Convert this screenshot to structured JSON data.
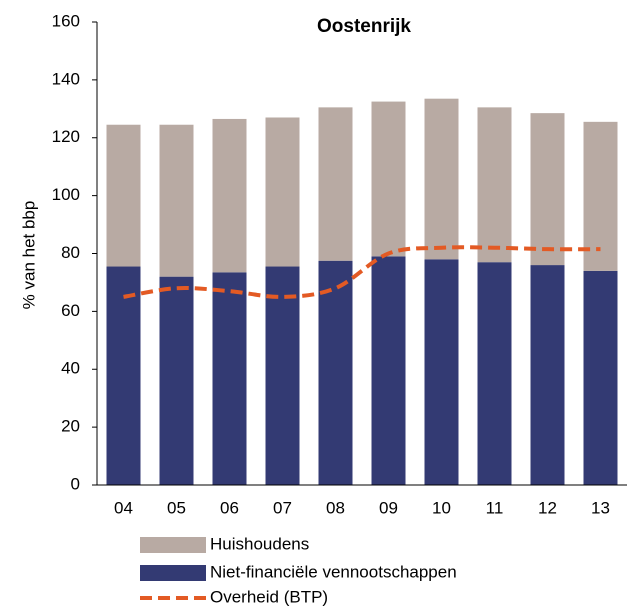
{
  "chart_data": {
    "type": "stacked-bar-line",
    "title": "Oostenrijk",
    "ylabel": "% van het bbp",
    "categories": [
      "04",
      "05",
      "06",
      "07",
      "08",
      "09",
      "10",
      "11",
      "12",
      "13"
    ],
    "series": [
      {
        "name": "Huishoudens",
        "color": "#b8aaa3",
        "kind": "bar",
        "values": [
          49,
          52.5,
          53,
          51.5,
          53,
          53.5,
          55.5,
          53.5,
          52.5,
          51.5
        ]
      },
      {
        "name": "Niet-financiële vennootschappen",
        "color": "#333a73",
        "kind": "bar",
        "values": [
          75.5,
          72,
          73.5,
          75.5,
          77.5,
          79,
          78,
          77,
          76,
          74
        ]
      },
      {
        "name": "Overheid (BTP)",
        "color": "#e35a24",
        "kind": "line",
        "values": [
          65,
          68,
          67,
          65,
          68,
          80,
          82,
          82,
          81.5,
          81.5
        ]
      }
    ],
    "ylim": [
      0,
      160
    ],
    "yticks": [
      0,
      20,
      40,
      60,
      80,
      100,
      120,
      140,
      160
    ]
  }
}
